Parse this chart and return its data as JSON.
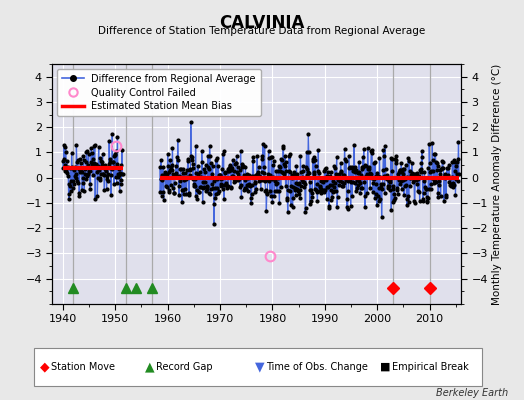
{
  "title": "CALVINIA",
  "subtitle": "Difference of Station Temperature Data from Regional Average",
  "ylabel": "Monthly Temperature Anomaly Difference (°C)",
  "credit": "Berkeley Earth",
  "xlim": [
    1938,
    2016
  ],
  "ylim": [
    -5,
    4.5
  ],
  "yticks": [
    -4,
    -3,
    -2,
    -1,
    0,
    1,
    2,
    3,
    4
  ],
  "xticks": [
    1940,
    1950,
    1960,
    1970,
    1980,
    1990,
    2000,
    2010
  ],
  "bg_color": "#e8e8e8",
  "plot_bg_color": "#e0e0ec",
  "grid_color": "#ffffff",
  "line_color": "#4466dd",
  "bias_color": "#ff0000",
  "qc_color": "#ff88cc",
  "data_seed": 42,
  "seg1_start": 1940.0,
  "seg1_end": 1951.5,
  "seg1_bias": 0.38,
  "seg2_start": 1958.5,
  "seg2_end": 2015.6,
  "seg2_bias": -0.02,
  "record_gaps": [
    1942,
    1952,
    1954,
    1957
  ],
  "station_moves": [
    2003,
    2010
  ],
  "qc_failed_points": [
    {
      "year": 1950.2,
      "value": 1.25
    },
    {
      "year": 1979.5,
      "value": -3.1
    }
  ],
  "vertical_lines": [
    1942,
    1952,
    1957,
    2003,
    2010
  ]
}
